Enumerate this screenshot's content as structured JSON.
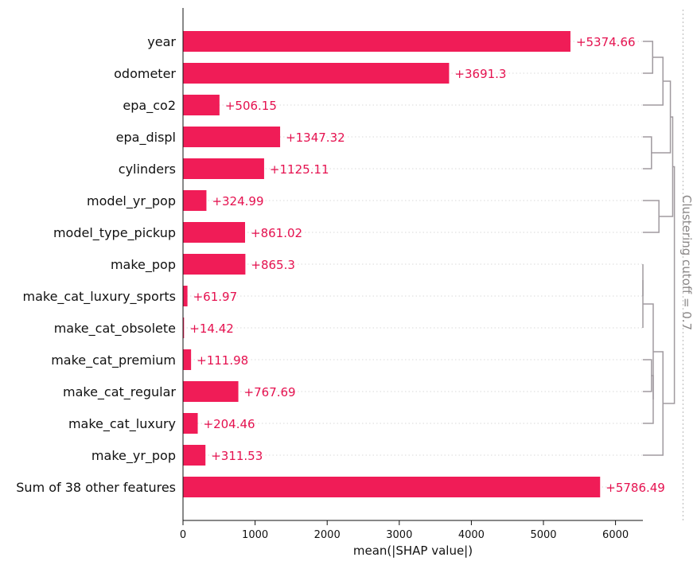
{
  "chart_data": {
    "type": "bar",
    "orientation": "horizontal",
    "categories": [
      "year",
      "odometer",
      "epa_co2",
      "epa_displ",
      "cylinders",
      "model_yr_pop",
      "model_type_pickup",
      "make_pop",
      "make_cat_luxury_sports",
      "make_cat_obsolete",
      "make_cat_premium",
      "make_cat_regular",
      "make_cat_luxury",
      "make_yr_pop",
      "Sum of 38 other features"
    ],
    "values": [
      5374.66,
      3691.3,
      506.15,
      1347.32,
      1125.11,
      324.99,
      861.02,
      865.3,
      61.97,
      14.42,
      111.98,
      767.69,
      204.46,
      311.53,
      5786.49
    ],
    "value_labels": [
      "+5374.66",
      "+3691.3",
      "+506.15",
      "+1347.32",
      "+1125.11",
      "+324.99",
      "+861.02",
      "+865.3",
      "+61.97",
      "+14.42",
      "+111.98",
      "+767.69",
      "+204.46",
      "+311.53",
      "+5786.49"
    ],
    "xlabel": "mean(|SHAP value|)",
    "xlim": [
      0,
      6400
    ],
    "xticks": [
      0,
      1000,
      2000,
      3000,
      4000,
      5000,
      6000
    ],
    "xtick_labels": [
      "0",
      "1000",
      "2000",
      "3000",
      "4000",
      "5000",
      "6000"
    ],
    "dendrogram": {
      "cutoff_label": "Clustering cutoff = 0.7",
      "merges": [
        {
          "a": "leaf:0",
          "b": "leaf:1",
          "level": 0.17
        },
        {
          "a": "leaf:3",
          "b": "leaf:4",
          "level": 0.15
        },
        {
          "a": "merge:0",
          "b": "leaf:2",
          "level": 0.35
        },
        {
          "a": "leaf:5",
          "b": "leaf:6",
          "level": 0.28
        },
        {
          "a": "merge:1",
          "b": "merge:2",
          "level": 0.48
        },
        {
          "a": "merge:4",
          "b": "merge:3",
          "level": 0.52
        },
        {
          "a": "leaf:10",
          "b": "leaf:11",
          "level": 0.15
        },
        {
          "a": "merge:6",
          "b": "leaf:12",
          "level": 0.18
        },
        {
          "a": "leaf:7",
          "b": "leaf:8",
          "level": 0.0
        },
        {
          "a": "merge:8",
          "b": "leaf:9",
          "level": 0.0
        },
        {
          "a": "merge:9",
          "b": "merge:7",
          "level": 0.18
        },
        {
          "a": "merge:10",
          "b": "leaf:13",
          "level": 0.35
        },
        {
          "a": "merge:5",
          "b": "merge:11",
          "level": 0.55
        }
      ],
      "cutoff": 0.7
    },
    "grid": false,
    "colors": {
      "bar": "#f01c57",
      "value_label": "#e5114f",
      "dendrogram": "#a09a9f",
      "cutoff": "#b8b8b8",
      "cutoff_label": "#8a8787",
      "axis": "#111111",
      "dotted_line": "#d9d9d9"
    }
  }
}
